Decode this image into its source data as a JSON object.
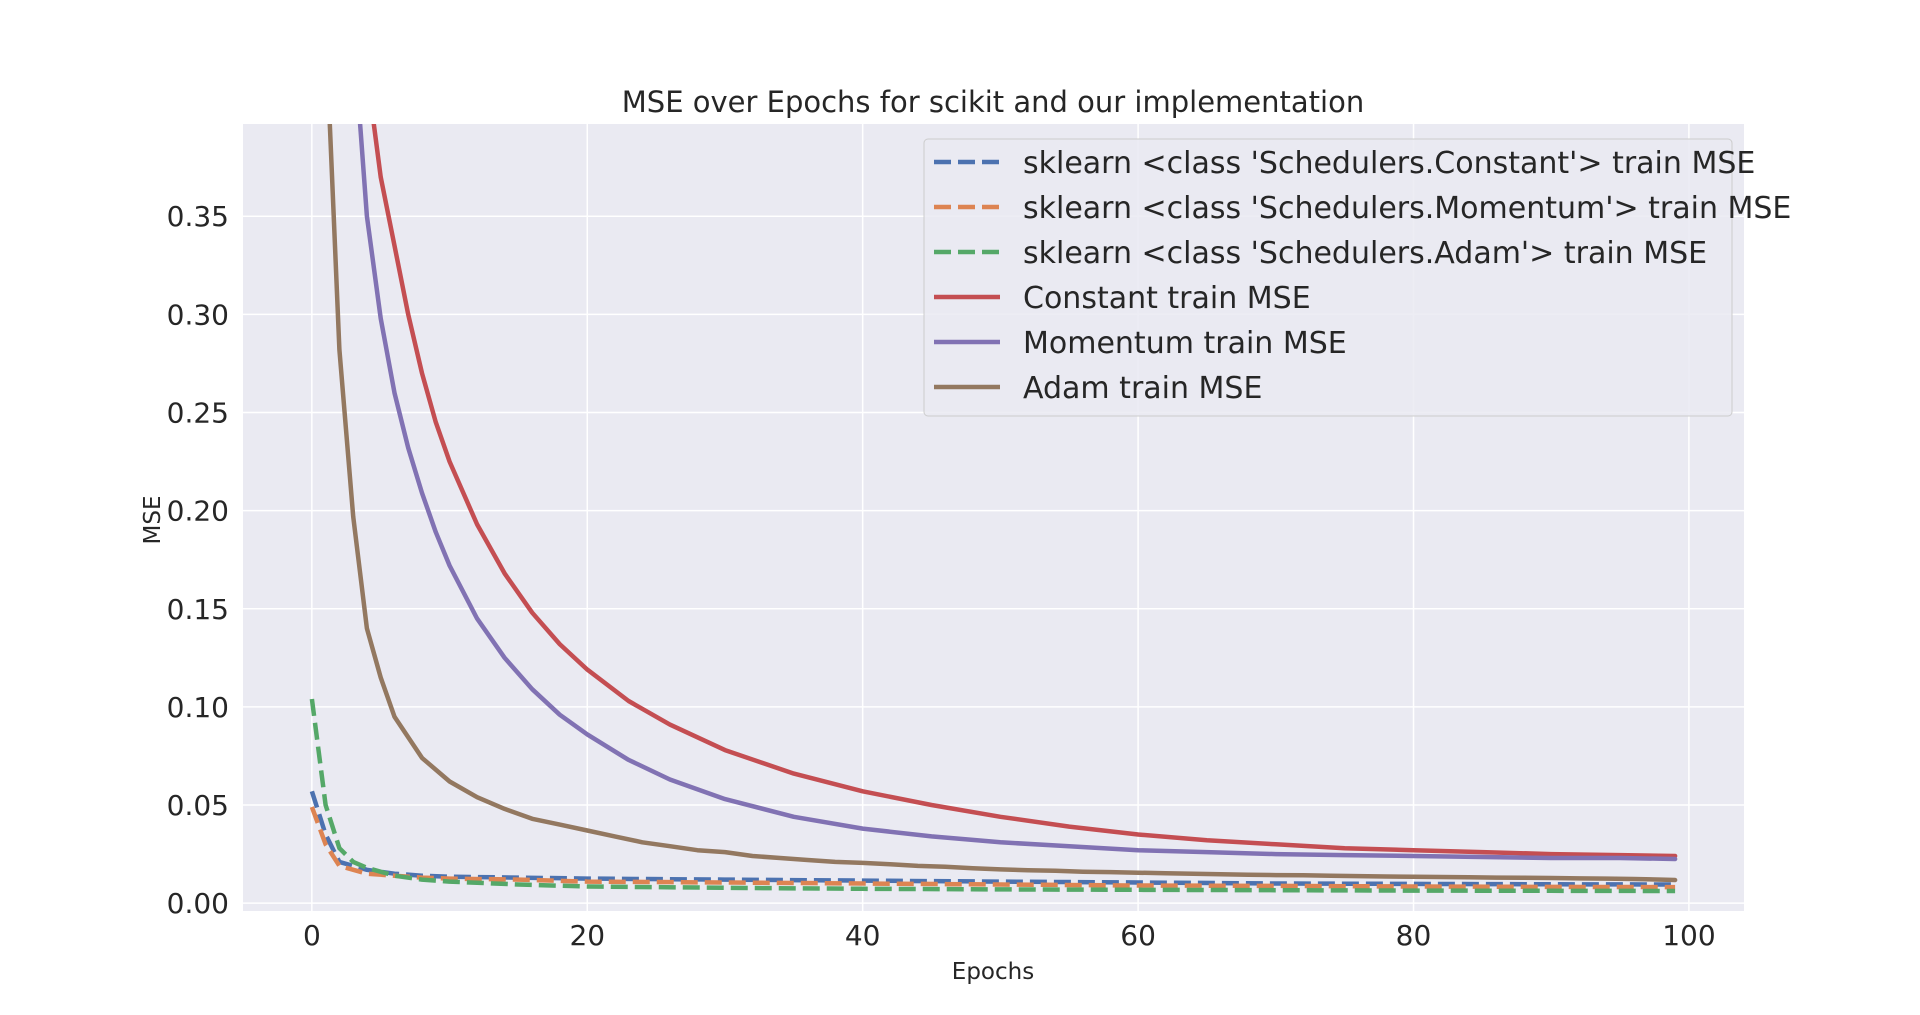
{
  "chart_data": {
    "type": "line",
    "title": "MSE over Epochs for scikit and our implementation",
    "xlabel": "Epochs",
    "ylabel": "MSE",
    "xlim": [
      -5,
      104
    ],
    "ylim": [
      -0.004,
      0.397
    ],
    "xticks": [
      0,
      20,
      40,
      60,
      80,
      100
    ],
    "xtick_labels": [
      "0",
      "20",
      "40",
      "60",
      "80",
      "100"
    ],
    "yticks": [
      0.0,
      0.05,
      0.1,
      0.15,
      0.2,
      0.25,
      0.3,
      0.35
    ],
    "ytick_labels": [
      "0.00",
      "0.05",
      "0.10",
      "0.15",
      "0.20",
      "0.25",
      "0.30",
      "0.35"
    ],
    "grid": true,
    "legend_position": "top-right",
    "colors": {
      "background": "#eaeaf2",
      "grid": "#ffffff",
      "blue": "#4c72b0",
      "orange": "#dd8452",
      "green": "#55a868",
      "red": "#c44e52",
      "purple": "#8172b3",
      "brown": "#937860"
    },
    "series": [
      {
        "name": "sklearn <class 'Schedulers.Constant'> train MSE",
        "color": "#4c72b0",
        "dashed": true,
        "x": [
          0,
          1,
          2,
          4,
          6,
          8,
          10,
          15,
          20,
          30,
          40,
          50,
          60,
          70,
          80,
          90,
          99
        ],
        "y": [
          0.057,
          0.035,
          0.021,
          0.017,
          0.015,
          0.014,
          0.0135,
          0.013,
          0.0125,
          0.012,
          0.0115,
          0.011,
          0.0105,
          0.01,
          0.0098,
          0.0096,
          0.0095
        ]
      },
      {
        "name": "sklearn <class 'Schedulers.Momentum'> train MSE",
        "color": "#dd8452",
        "dashed": true,
        "x": [
          0,
          1,
          2,
          4,
          6,
          8,
          10,
          15,
          20,
          30,
          40,
          50,
          60,
          70,
          80,
          90,
          99
        ],
        "y": [
          0.049,
          0.03,
          0.019,
          0.015,
          0.014,
          0.013,
          0.0125,
          0.012,
          0.011,
          0.0105,
          0.01,
          0.0095,
          0.009,
          0.0088,
          0.0085,
          0.0083,
          0.0082
        ]
      },
      {
        "name": "sklearn <class 'Schedulers.Adam'> train MSE",
        "color": "#55a868",
        "dashed": true,
        "x": [
          0,
          1,
          2,
          3,
          4,
          6,
          8,
          10,
          15,
          20,
          30,
          40,
          50,
          60,
          70,
          80,
          90,
          99
        ],
        "y": [
          0.104,
          0.05,
          0.028,
          0.021,
          0.018,
          0.014,
          0.012,
          0.011,
          0.0095,
          0.0085,
          0.0078,
          0.0073,
          0.007,
          0.0068,
          0.0066,
          0.0064,
          0.0063,
          0.0062
        ]
      },
      {
        "name": "Constant train MSE",
        "color": "#c44e52",
        "dashed": false,
        "x": [
          4.5,
          5,
          6,
          7,
          8,
          9,
          10,
          12,
          14,
          16,
          18,
          20,
          23,
          26,
          30,
          35,
          40,
          45,
          50,
          55,
          60,
          65,
          70,
          75,
          80,
          85,
          90,
          95,
          99
        ],
        "y": [
          0.397,
          0.37,
          0.335,
          0.3,
          0.27,
          0.245,
          0.225,
          0.193,
          0.168,
          0.148,
          0.132,
          0.119,
          0.103,
          0.091,
          0.078,
          0.066,
          0.057,
          0.05,
          0.044,
          0.039,
          0.035,
          0.032,
          0.03,
          0.028,
          0.027,
          0.026,
          0.025,
          0.0245,
          0.024
        ]
      },
      {
        "name": "Momentum train MSE",
        "color": "#8172b3",
        "dashed": false,
        "x": [
          3.5,
          4,
          5,
          6,
          7,
          8,
          9,
          10,
          12,
          14,
          16,
          18,
          20,
          23,
          26,
          30,
          35,
          40,
          45,
          50,
          55,
          60,
          65,
          70,
          75,
          80,
          85,
          90,
          95,
          99
        ],
        "y": [
          0.397,
          0.35,
          0.298,
          0.26,
          0.232,
          0.209,
          0.189,
          0.172,
          0.145,
          0.125,
          0.109,
          0.096,
          0.086,
          0.073,
          0.063,
          0.053,
          0.044,
          0.038,
          0.034,
          0.031,
          0.029,
          0.027,
          0.026,
          0.025,
          0.0245,
          0.024,
          0.0235,
          0.023,
          0.023,
          0.0225
        ]
      },
      {
        "name": "Adam train MSE",
        "color": "#937860",
        "dashed": false,
        "x": [
          1.3,
          2,
          3,
          4,
          5,
          6,
          8,
          10,
          12,
          14,
          16,
          18,
          20,
          22,
          24,
          26,
          28,
          30,
          32,
          34,
          36,
          38,
          40,
          42,
          44,
          46,
          48,
          50,
          52,
          54,
          56,
          58,
          60,
          62,
          64,
          66,
          68,
          70,
          72,
          74,
          76,
          78,
          80,
          82,
          84,
          86,
          88,
          90,
          92,
          94,
          96,
          98,
          99
        ],
        "y": [
          0.397,
          0.282,
          0.197,
          0.14,
          0.115,
          0.095,
          0.074,
          0.062,
          0.054,
          0.048,
          0.043,
          0.04,
          0.037,
          0.034,
          0.031,
          0.029,
          0.027,
          0.026,
          0.024,
          0.023,
          0.022,
          0.021,
          0.0205,
          0.0198,
          0.019,
          0.0185,
          0.0178,
          0.0172,
          0.0168,
          0.0165,
          0.016,
          0.0158,
          0.0155,
          0.0152,
          0.015,
          0.0147,
          0.0145,
          0.0143,
          0.0142,
          0.014,
          0.0138,
          0.0136,
          0.0135,
          0.0133,
          0.0132,
          0.013,
          0.0129,
          0.0128,
          0.0126,
          0.0125,
          0.0123,
          0.012,
          0.0118
        ]
      }
    ]
  }
}
